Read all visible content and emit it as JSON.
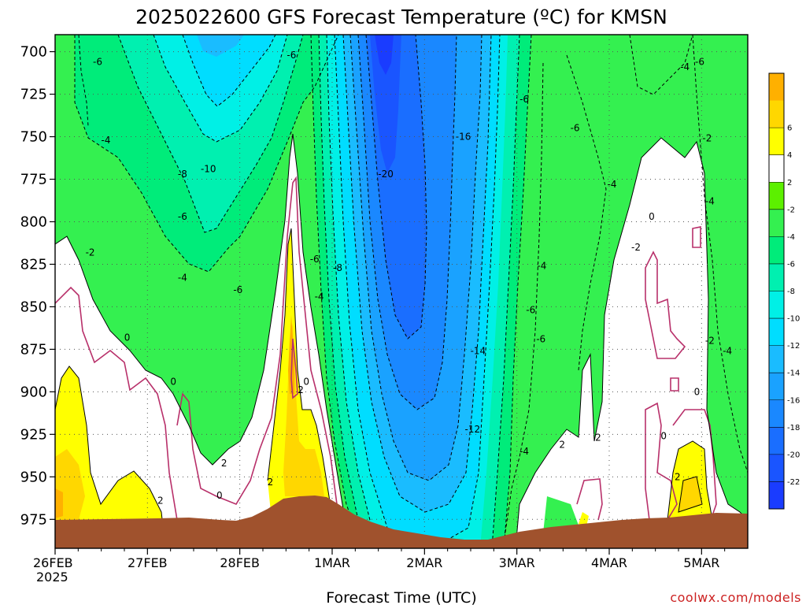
{
  "chart_data": {
    "type": "heatmap",
    "title": "2025022600 GFS Forecast Temperature (ºC) for KMSN",
    "xlabel": "Forecast Time (UTC)",
    "ylabel": "",
    "credit": "coolwx.com/models",
    "x_ticks": [
      {
        "label": "26FEB",
        "sub": "2025",
        "day": 0
      },
      {
        "label": "27FEB",
        "sub": "",
        "day": 1
      },
      {
        "label": "28FEB",
        "sub": "",
        "day": 2
      },
      {
        "label": "1MAR",
        "sub": "",
        "day": 3
      },
      {
        "label": "2MAR",
        "sub": "",
        "day": 4
      },
      {
        "label": "3MAR",
        "sub": "",
        "day": 5
      },
      {
        "label": "4MAR",
        "sub": "",
        "day": 6
      },
      {
        "label": "5MAR",
        "sub": "",
        "day": 7
      }
    ],
    "x_range_days": [
      0,
      7.5
    ],
    "y_ticks": [
      700,
      725,
      750,
      775,
      800,
      825,
      850,
      875,
      900,
      925,
      950,
      975
    ],
    "y_range_hpa": [
      690,
      992
    ],
    "grid": true,
    "colorbar": {
      "levels": [
        -24,
        -22,
        -20,
        -18,
        -16,
        -14,
        -12,
        -10,
        -8,
        -6,
        -4,
        -2,
        2,
        4,
        6,
        8
      ],
      "labels": [
        -22,
        -20,
        -18,
        -16,
        -14,
        -12,
        -10,
        -8,
        -6,
        -4,
        -2,
        2,
        4,
        6
      ],
      "colors": [
        "#1a3cff",
        "#1a55ff",
        "#1a6eff",
        "#1a88ff",
        "#1aa2ff",
        "#1abcff",
        "#00ddff",
        "#00f0e6",
        "#00f0b0",
        "#00ec7a",
        "#34f050",
        "#5cf000",
        "#ffffff",
        "#ffff00",
        "#ffd700",
        "#ffb000"
      ]
    },
    "terrain_color": "#a0522d",
    "zero_contour_color": "#b8306a",
    "contour_labels": [
      {
        "t": "-6",
        "day": 0.46,
        "p": 706
      },
      {
        "t": "-4",
        "day": 0.55,
        "p": 752
      },
      {
        "t": "-2",
        "day": 0.38,
        "p": 818
      },
      {
        "t": "-6",
        "day": 2.56,
        "p": 702
      },
      {
        "t": "-8",
        "day": 1.38,
        "p": 772
      },
      {
        "t": "-10",
        "day": 1.66,
        "p": 769
      },
      {
        "t": "-6",
        "day": 1.38,
        "p": 797
      },
      {
        "t": "-4",
        "day": 1.38,
        "p": 833
      },
      {
        "t": "-6",
        "day": 1.98,
        "p": 840
      },
      {
        "t": "0",
        "day": 0.78,
        "p": 868
      },
      {
        "t": "0",
        "day": 1.28,
        "p": 894
      },
      {
        "t": "2",
        "day": 1.14,
        "p": 964
      },
      {
        "t": "2",
        "day": 1.83,
        "p": 942
      },
      {
        "t": "0",
        "day": 1.78,
        "p": 961
      },
      {
        "t": "2",
        "day": 2.33,
        "p": 953
      },
      {
        "t": "2",
        "day": 2.66,
        "p": 899
      },
      {
        "t": "0",
        "day": 2.72,
        "p": 894
      },
      {
        "t": "-6",
        "day": 2.81,
        "p": 822
      },
      {
        "t": "-8",
        "day": 3.06,
        "p": 827
      },
      {
        "t": "-4",
        "day": 2.86,
        "p": 844
      },
      {
        "t": "-20",
        "day": 3.58,
        "p": 772
      },
      {
        "t": "-16",
        "day": 4.42,
        "p": 750
      },
      {
        "t": "-14",
        "day": 4.58,
        "p": 876
      },
      {
        "t": "-12",
        "day": 4.52,
        "p": 922
      },
      {
        "t": "-6",
        "day": 5.08,
        "p": 728
      },
      {
        "t": "-6",
        "day": 5.63,
        "p": 745
      },
      {
        "t": "-4",
        "day": 5.27,
        "p": 826
      },
      {
        "t": "-6",
        "day": 5.15,
        "p": 852
      },
      {
        "t": "-6",
        "day": 5.26,
        "p": 869
      },
      {
        "t": "-4",
        "day": 5.08,
        "p": 935
      },
      {
        "t": "2",
        "day": 5.49,
        "p": 931
      },
      {
        "t": "2",
        "day": 5.88,
        "p": 927
      },
      {
        "t": "-4",
        "day": 6.03,
        "p": 778
      },
      {
        "t": "-2",
        "day": 6.29,
        "p": 815
      },
      {
        "t": "0",
        "day": 6.46,
        "p": 797
      },
      {
        "t": "-4",
        "day": 6.82,
        "p": 709
      },
      {
        "t": "-6",
        "day": 6.98,
        "p": 706
      },
      {
        "t": "-2",
        "day": 7.06,
        "p": 751
      },
      {
        "t": "-4",
        "day": 7.09,
        "p": 788
      },
      {
        "t": "-2",
        "day": 7.09,
        "p": 870
      },
      {
        "t": "-4",
        "day": 7.28,
        "p": 876
      },
      {
        "t": "0",
        "day": 6.59,
        "p": 926
      },
      {
        "t": "0",
        "day": 6.95,
        "p": 900
      },
      {
        "t": "2",
        "day": 6.74,
        "p": 950
      }
    ]
  }
}
